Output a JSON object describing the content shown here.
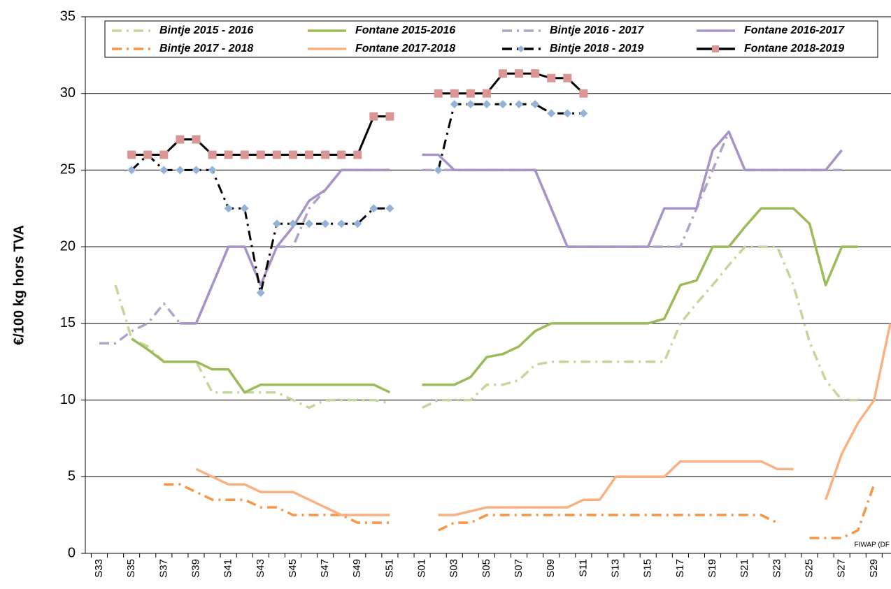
{
  "chart_data": {
    "type": "line",
    "ylabel": "€/100 kg hors TVA",
    "annotation": "FIWAP (DF",
    "categories": [
      "S33",
      null,
      "S35",
      null,
      "S37",
      null,
      "S39",
      null,
      "S41",
      null,
      "S43",
      null,
      "S45",
      null,
      "S47",
      null,
      "S49",
      null,
      "S51",
      null,
      "S01",
      null,
      "S03",
      null,
      "S05",
      null,
      "S07",
      null,
      "S09",
      null,
      "S11",
      null,
      "S13",
      null,
      "S15",
      null,
      "S17",
      null,
      "S19",
      null,
      "S21",
      null,
      "S23",
      null,
      "S25",
      null,
      "S27",
      null,
      "S29",
      null
    ],
    "ylim": [
      0,
      35
    ],
    "yticks": [
      0,
      5,
      10,
      15,
      20,
      25,
      30,
      35
    ],
    "grid": true,
    "series": [
      {
        "name": "Bintje 2015 - 2016",
        "color": "#c3d69b",
        "dash": "dashdot",
        "values": [
          null,
          17.5,
          14,
          13.5,
          12.5,
          12.5,
          12.5,
          10.5,
          10.5,
          10.5,
          10.5,
          10.5,
          10,
          9.5,
          10,
          10,
          10,
          10,
          9.8,
          null,
          9.5,
          10,
          10,
          10,
          11,
          11,
          11.3,
          12.3,
          12.5,
          12.5,
          12.5,
          12.5,
          12.5,
          12.5,
          12.5,
          12.5,
          15,
          16.3,
          17.5,
          18.8,
          20,
          20,
          20,
          17.5,
          13.8,
          11.3,
          10,
          10,
          null,
          null
        ]
      },
      {
        "name": "Fontane 2015-2016",
        "color": "#9bbb59",
        "dash": "solid",
        "values": [
          null,
          null,
          14,
          13.3,
          12.5,
          12.5,
          12.5,
          12,
          12,
          10.5,
          11,
          11,
          11,
          11,
          11,
          11,
          11,
          11,
          10.5,
          null,
          11,
          11,
          11,
          11.5,
          12.8,
          13,
          13.5,
          14.5,
          15,
          15,
          15,
          15,
          15,
          15,
          15,
          15.3,
          17.5,
          17.8,
          20,
          20,
          21.3,
          22.5,
          22.5,
          22.5,
          21.5,
          17.5,
          20,
          20,
          null,
          null
        ]
      },
      {
        "name": "Bintje 2016 - 2017",
        "color": "#b3a2c7",
        "dash": "dashdot",
        "values": [
          13.7,
          13.7,
          14.5,
          15,
          16.3,
          15,
          15,
          17.5,
          20,
          20,
          17.5,
          20,
          20,
          22.5,
          23.7,
          25,
          25,
          25,
          25,
          null,
          25,
          25,
          25,
          25,
          25,
          25,
          25,
          25,
          22.5,
          20,
          20,
          20,
          20,
          20,
          20,
          20,
          20,
          22.5,
          25,
          27.5,
          25,
          25,
          25,
          25,
          25,
          25,
          25,
          null,
          null,
          null
        ]
      },
      {
        "name": "Fontane 2016-2017",
        "color": "#a694c8",
        "dash": "solid",
        "values": [
          null,
          null,
          null,
          null,
          null,
          15,
          15,
          17.5,
          20,
          20,
          17.5,
          20,
          21.3,
          23,
          23.7,
          25,
          25,
          25,
          25,
          null,
          26,
          26,
          25,
          25,
          25,
          25,
          25,
          25,
          22.5,
          20,
          20,
          20,
          20,
          20,
          20,
          22.5,
          22.5,
          22.5,
          26.3,
          27.5,
          25,
          25,
          25,
          25,
          25,
          25,
          26.3,
          null,
          null,
          null
        ]
      },
      {
        "name": "Bintje 2017 - 2018",
        "color": "#f79646",
        "dash": "dashdot",
        "values": [
          null,
          null,
          null,
          null,
          4.5,
          4.5,
          4,
          3.5,
          3.5,
          3.5,
          3,
          3,
          2.5,
          2.5,
          2.5,
          2.5,
          2,
          2,
          2,
          null,
          null,
          1.5,
          2,
          2,
          2.5,
          2.5,
          2.5,
          2.5,
          2.5,
          2.5,
          2.5,
          2.5,
          2.5,
          2.5,
          2.5,
          2.5,
          2.5,
          2.5,
          2.5,
          2.5,
          2.5,
          2.5,
          2,
          null,
          1,
          1,
          1,
          1.5,
          4.5,
          null
        ]
      },
      {
        "name": "Fontane 2017-2018",
        "color": "#fab182",
        "dash": "solid",
        "values": [
          null,
          null,
          null,
          null,
          null,
          null,
          5.5,
          5,
          4.5,
          4.5,
          4,
          4,
          4,
          3.5,
          3,
          2.5,
          2.5,
          2.5,
          2.5,
          null,
          null,
          2.5,
          2.5,
          2.75,
          3,
          3,
          3,
          3,
          3,
          3,
          3.5,
          3.5,
          5,
          5,
          5,
          5,
          6,
          6,
          6,
          6,
          6,
          6,
          5.5,
          5.5,
          null,
          3.5,
          6.5,
          8.5,
          10,
          15
        ]
      },
      {
        "name": "Bintje 2018 - 2019",
        "color": "#000000",
        "dash": "dashdot",
        "marker": "diamond",
        "marker_color": "#95b3d7",
        "values": [
          null,
          null,
          25,
          26,
          25,
          25,
          25,
          25,
          22.5,
          22.5,
          17,
          21.5,
          21.5,
          21.5,
          21.5,
          21.5,
          21.5,
          22.5,
          22.5,
          null,
          null,
          25,
          29.3,
          29.3,
          29.3,
          29.3,
          29.3,
          29.3,
          28.7,
          28.7,
          28.7,
          null,
          null,
          null,
          null,
          null,
          null,
          null,
          null,
          null,
          null,
          null,
          null,
          null,
          null,
          null,
          null,
          null,
          null,
          null
        ]
      },
      {
        "name": "Fontane 2018-2019",
        "color": "#000000",
        "dash": "solid",
        "marker": "square",
        "marker_color": "#d99694",
        "values": [
          null,
          null,
          26,
          26,
          26,
          27,
          27,
          26,
          26,
          26,
          26,
          26,
          26,
          26,
          26,
          26,
          26,
          28.5,
          28.5,
          null,
          null,
          30,
          30,
          30,
          30,
          31.3,
          31.3,
          31.3,
          31,
          31,
          30,
          null,
          null,
          null,
          null,
          null,
          null,
          null,
          null,
          null,
          null,
          null,
          null,
          null,
          null,
          null,
          null,
          null,
          null,
          null
        ]
      }
    ]
  }
}
